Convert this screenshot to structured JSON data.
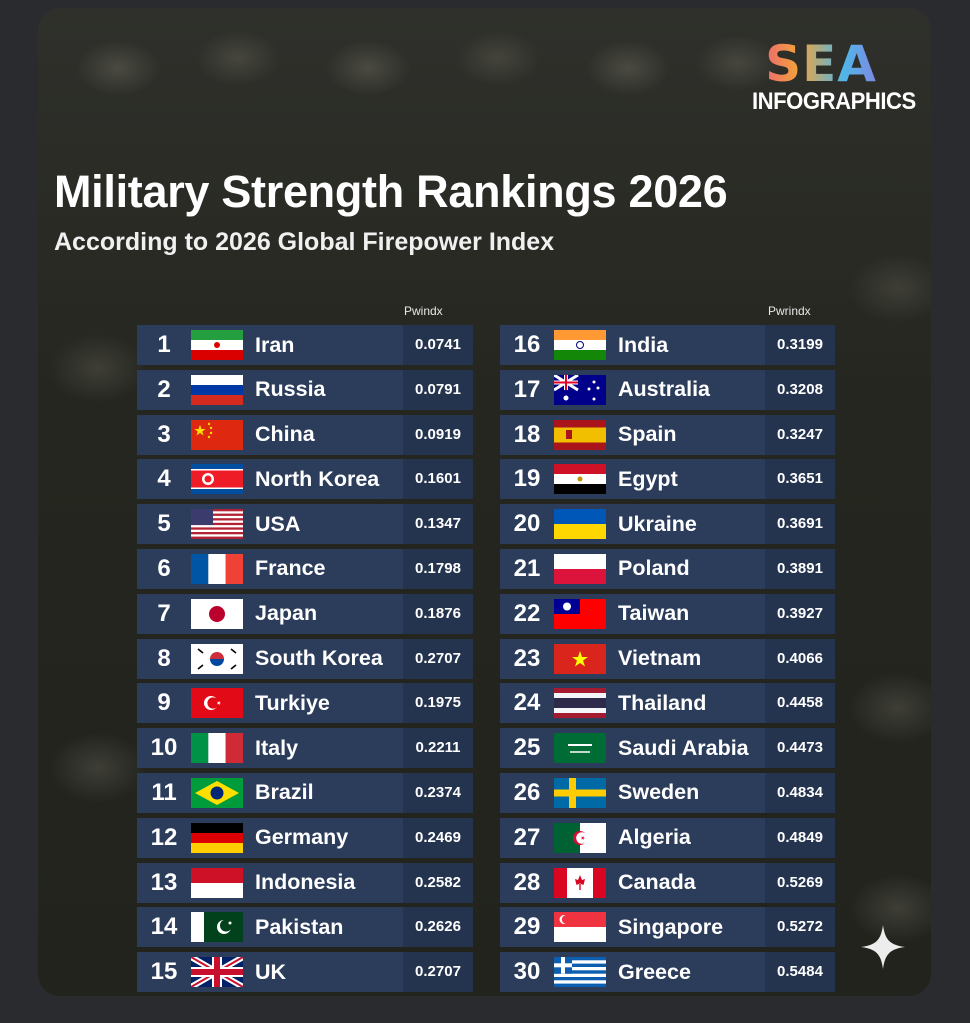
{
  "logo": {
    "main": "SEA",
    "sub": "INFOGRAPHICS"
  },
  "title": "Military Strength Rankings 2026",
  "subtitle": "According to 2026 Global Firepower Index",
  "column_headers": {
    "left": "Pwindx",
    "right": "Pwrindx"
  },
  "left_rows": [
    {
      "rank": "1",
      "country": "Iran",
      "index": "0.0741",
      "flag": "iran-flag"
    },
    {
      "rank": "2",
      "country": "Russia",
      "index": "0.0791",
      "flag": "russia-flag"
    },
    {
      "rank": "3",
      "country": "China",
      "index": "0.0919",
      "flag": "china-flag"
    },
    {
      "rank": "4",
      "country": "North Korea",
      "index": "0.1601",
      "flag": "north-korea-flag"
    },
    {
      "rank": "5",
      "country": "USA",
      "index": "0.1347",
      "flag": "usa-flag"
    },
    {
      "rank": "6",
      "country": "France",
      "index": "0.1798",
      "flag": "france-flag"
    },
    {
      "rank": "7",
      "country": "Japan",
      "index": "0.1876",
      "flag": "japan-flag"
    },
    {
      "rank": "8",
      "country": "South Korea",
      "index": "0.2707",
      "flag": "south-korea-flag"
    },
    {
      "rank": "9",
      "country": "Turkiye",
      "index": "0.1975",
      "flag": "turkiye-flag"
    },
    {
      "rank": "10",
      "country": "Italy",
      "index": "0.2211",
      "flag": "italy-flag"
    },
    {
      "rank": "11",
      "country": "Brazil",
      "index": "0.2374",
      "flag": "brazil-flag"
    },
    {
      "rank": "12",
      "country": "Germany",
      "index": "0.2469",
      "flag": "germany-flag"
    },
    {
      "rank": "13",
      "country": "Indonesia",
      "index": "0.2582",
      "flag": "indonesia-flag"
    },
    {
      "rank": "14",
      "country": "Pakistan",
      "index": "0.2626",
      "flag": "pakistan-flag"
    },
    {
      "rank": "15",
      "country": "UK",
      "index": "0.2707",
      "flag": "uk-flag"
    }
  ],
  "right_rows": [
    {
      "rank": "16",
      "country": "India",
      "index": "0.3199",
      "flag": "india-flag"
    },
    {
      "rank": "17",
      "country": "Australia",
      "index": "0.3208",
      "flag": "australia-flag"
    },
    {
      "rank": "18",
      "country": "Spain",
      "index": "0.3247",
      "flag": "spain-flag"
    },
    {
      "rank": "19",
      "country": "Egypt",
      "index": "0.3651",
      "flag": "egypt-flag"
    },
    {
      "rank": "20",
      "country": "Ukraine",
      "index": "0.3691",
      "flag": "ukraine-flag"
    },
    {
      "rank": "21",
      "country": "Poland",
      "index": "0.3891",
      "flag": "poland-flag"
    },
    {
      "rank": "22",
      "country": "Taiwan",
      "index": "0.3927",
      "flag": "taiwan-flag"
    },
    {
      "rank": "23",
      "country": "Vietnam",
      "index": "0.4066",
      "flag": "vietnam-flag"
    },
    {
      "rank": "24",
      "country": "Thailand",
      "index": "0.4458",
      "flag": "thailand-flag"
    },
    {
      "rank": "25",
      "country": "Saudi Arabia",
      "index": "0.4473",
      "flag": "saudi-arabia-flag"
    },
    {
      "rank": "26",
      "country": "Sweden",
      "index": "0.4834",
      "flag": "sweden-flag"
    },
    {
      "rank": "27",
      "country": "Algeria",
      "index": "0.4849",
      "flag": "algeria-flag"
    },
    {
      "rank": "28",
      "country": "Canada",
      "index": "0.5269",
      "flag": "canada-flag"
    },
    {
      "rank": "29",
      "country": "Singapore",
      "index": "0.5272",
      "flag": "singapore-flag"
    },
    {
      "rank": "30",
      "country": "Greece",
      "index": "0.5484",
      "flag": "greece-flag"
    }
  ],
  "colors": {
    "row_bg": "#2c3d5c",
    "index_bg": "#24344f",
    "text": "#ffffff"
  },
  "overlay_icon": "sparkle-icon"
}
